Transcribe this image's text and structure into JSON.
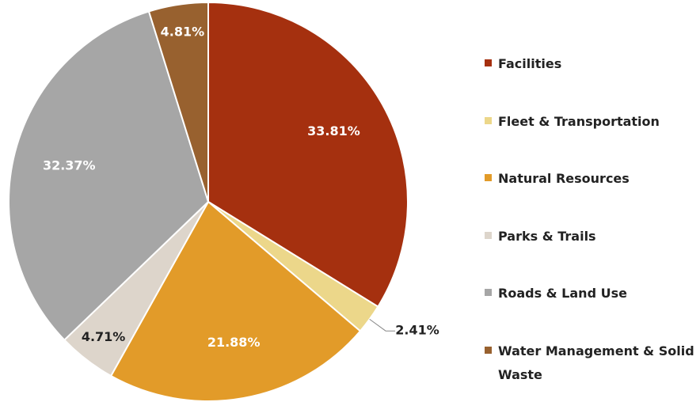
{
  "chart_data": {
    "type": "pie",
    "categories": [
      "Facilities",
      "Fleet & Transportation",
      "Natural Resources",
      "Parks & Trails",
      "Roads & Land Use",
      "Water Management & Solid Waste"
    ],
    "values": [
      33.81,
      2.41,
      21.88,
      4.71,
      32.37,
      4.81
    ],
    "value_labels": [
      "33.81%",
      "2.41%",
      "21.88%",
      "4.71%",
      "32.37%",
      "4.81%"
    ],
    "colors": [
      "#a5300f",
      "#ecd78a",
      "#e29b29",
      "#ddd5cb",
      "#a6a6a6",
      "#98612f"
    ],
    "legend": "right"
  }
}
